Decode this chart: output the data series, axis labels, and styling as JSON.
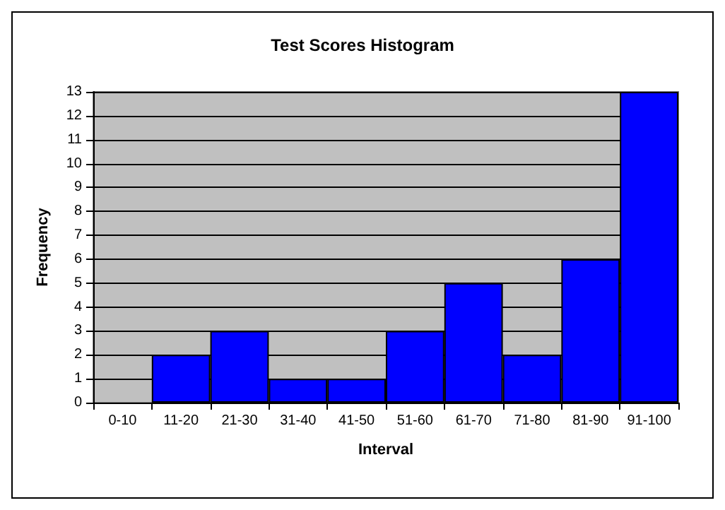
{
  "chart_data": {
    "type": "bar",
    "title": "Test Scores Histogram",
    "xlabel": "Interval",
    "ylabel": "Frequency",
    "categories": [
      "0-10",
      "11-20",
      "21-30",
      "31-40",
      "41-50",
      "51-60",
      "61-70",
      "71-80",
      "81-90",
      "91-100"
    ],
    "values": [
      0,
      2,
      3,
      1,
      1,
      3,
      5,
      2,
      6,
      13
    ],
    "color": "#0000ff",
    "ylim": [
      0,
      13
    ],
    "yticks": [
      0,
      1,
      2,
      3,
      4,
      5,
      6,
      7,
      8,
      9,
      10,
      11,
      12,
      13
    ],
    "grid": "y"
  }
}
